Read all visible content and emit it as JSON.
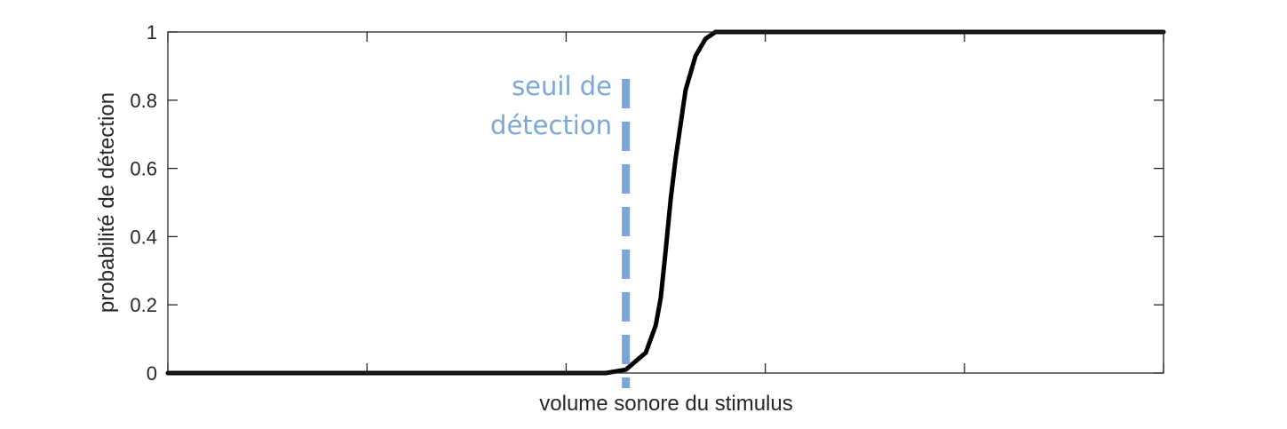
{
  "chart_data": {
    "type": "line",
    "title": "",
    "xlabel": "volume sonore du stimulus",
    "ylabel": "probabilité de détection",
    "xlim": [
      0,
      10
    ],
    "ylim": [
      0,
      1
    ],
    "x_ticks": [
      0,
      2,
      4,
      6,
      8,
      10
    ],
    "x_tick_labels": [
      "",
      "",
      "",
      "",
      "",
      ""
    ],
    "y_ticks": [
      0,
      0.2,
      0.4,
      0.6,
      0.8,
      1
    ],
    "y_tick_labels": [
      "0",
      "0.2",
      "0.4",
      "0.6",
      "0.8",
      "1"
    ],
    "grid": false,
    "series": [
      {
        "color": "#000000",
        "x": [
          0,
          1,
          2,
          3,
          4,
          4.4,
          4.6,
          4.8,
          4.9,
          4.95,
          5.0,
          5.05,
          5.1,
          5.2,
          5.3,
          5.4,
          5.5,
          6,
          8,
          10
        ],
        "y": [
          0,
          0,
          0,
          0,
          0,
          0,
          0.01,
          0.06,
          0.14,
          0.22,
          0.36,
          0.51,
          0.63,
          0.83,
          0.93,
          0.98,
          1,
          1,
          1,
          1
        ]
      }
    ],
    "threshold": {
      "x": 4.6,
      "label_line1": "seuil de",
      "label_line2": "détection",
      "color": "#7ba7d6"
    }
  }
}
